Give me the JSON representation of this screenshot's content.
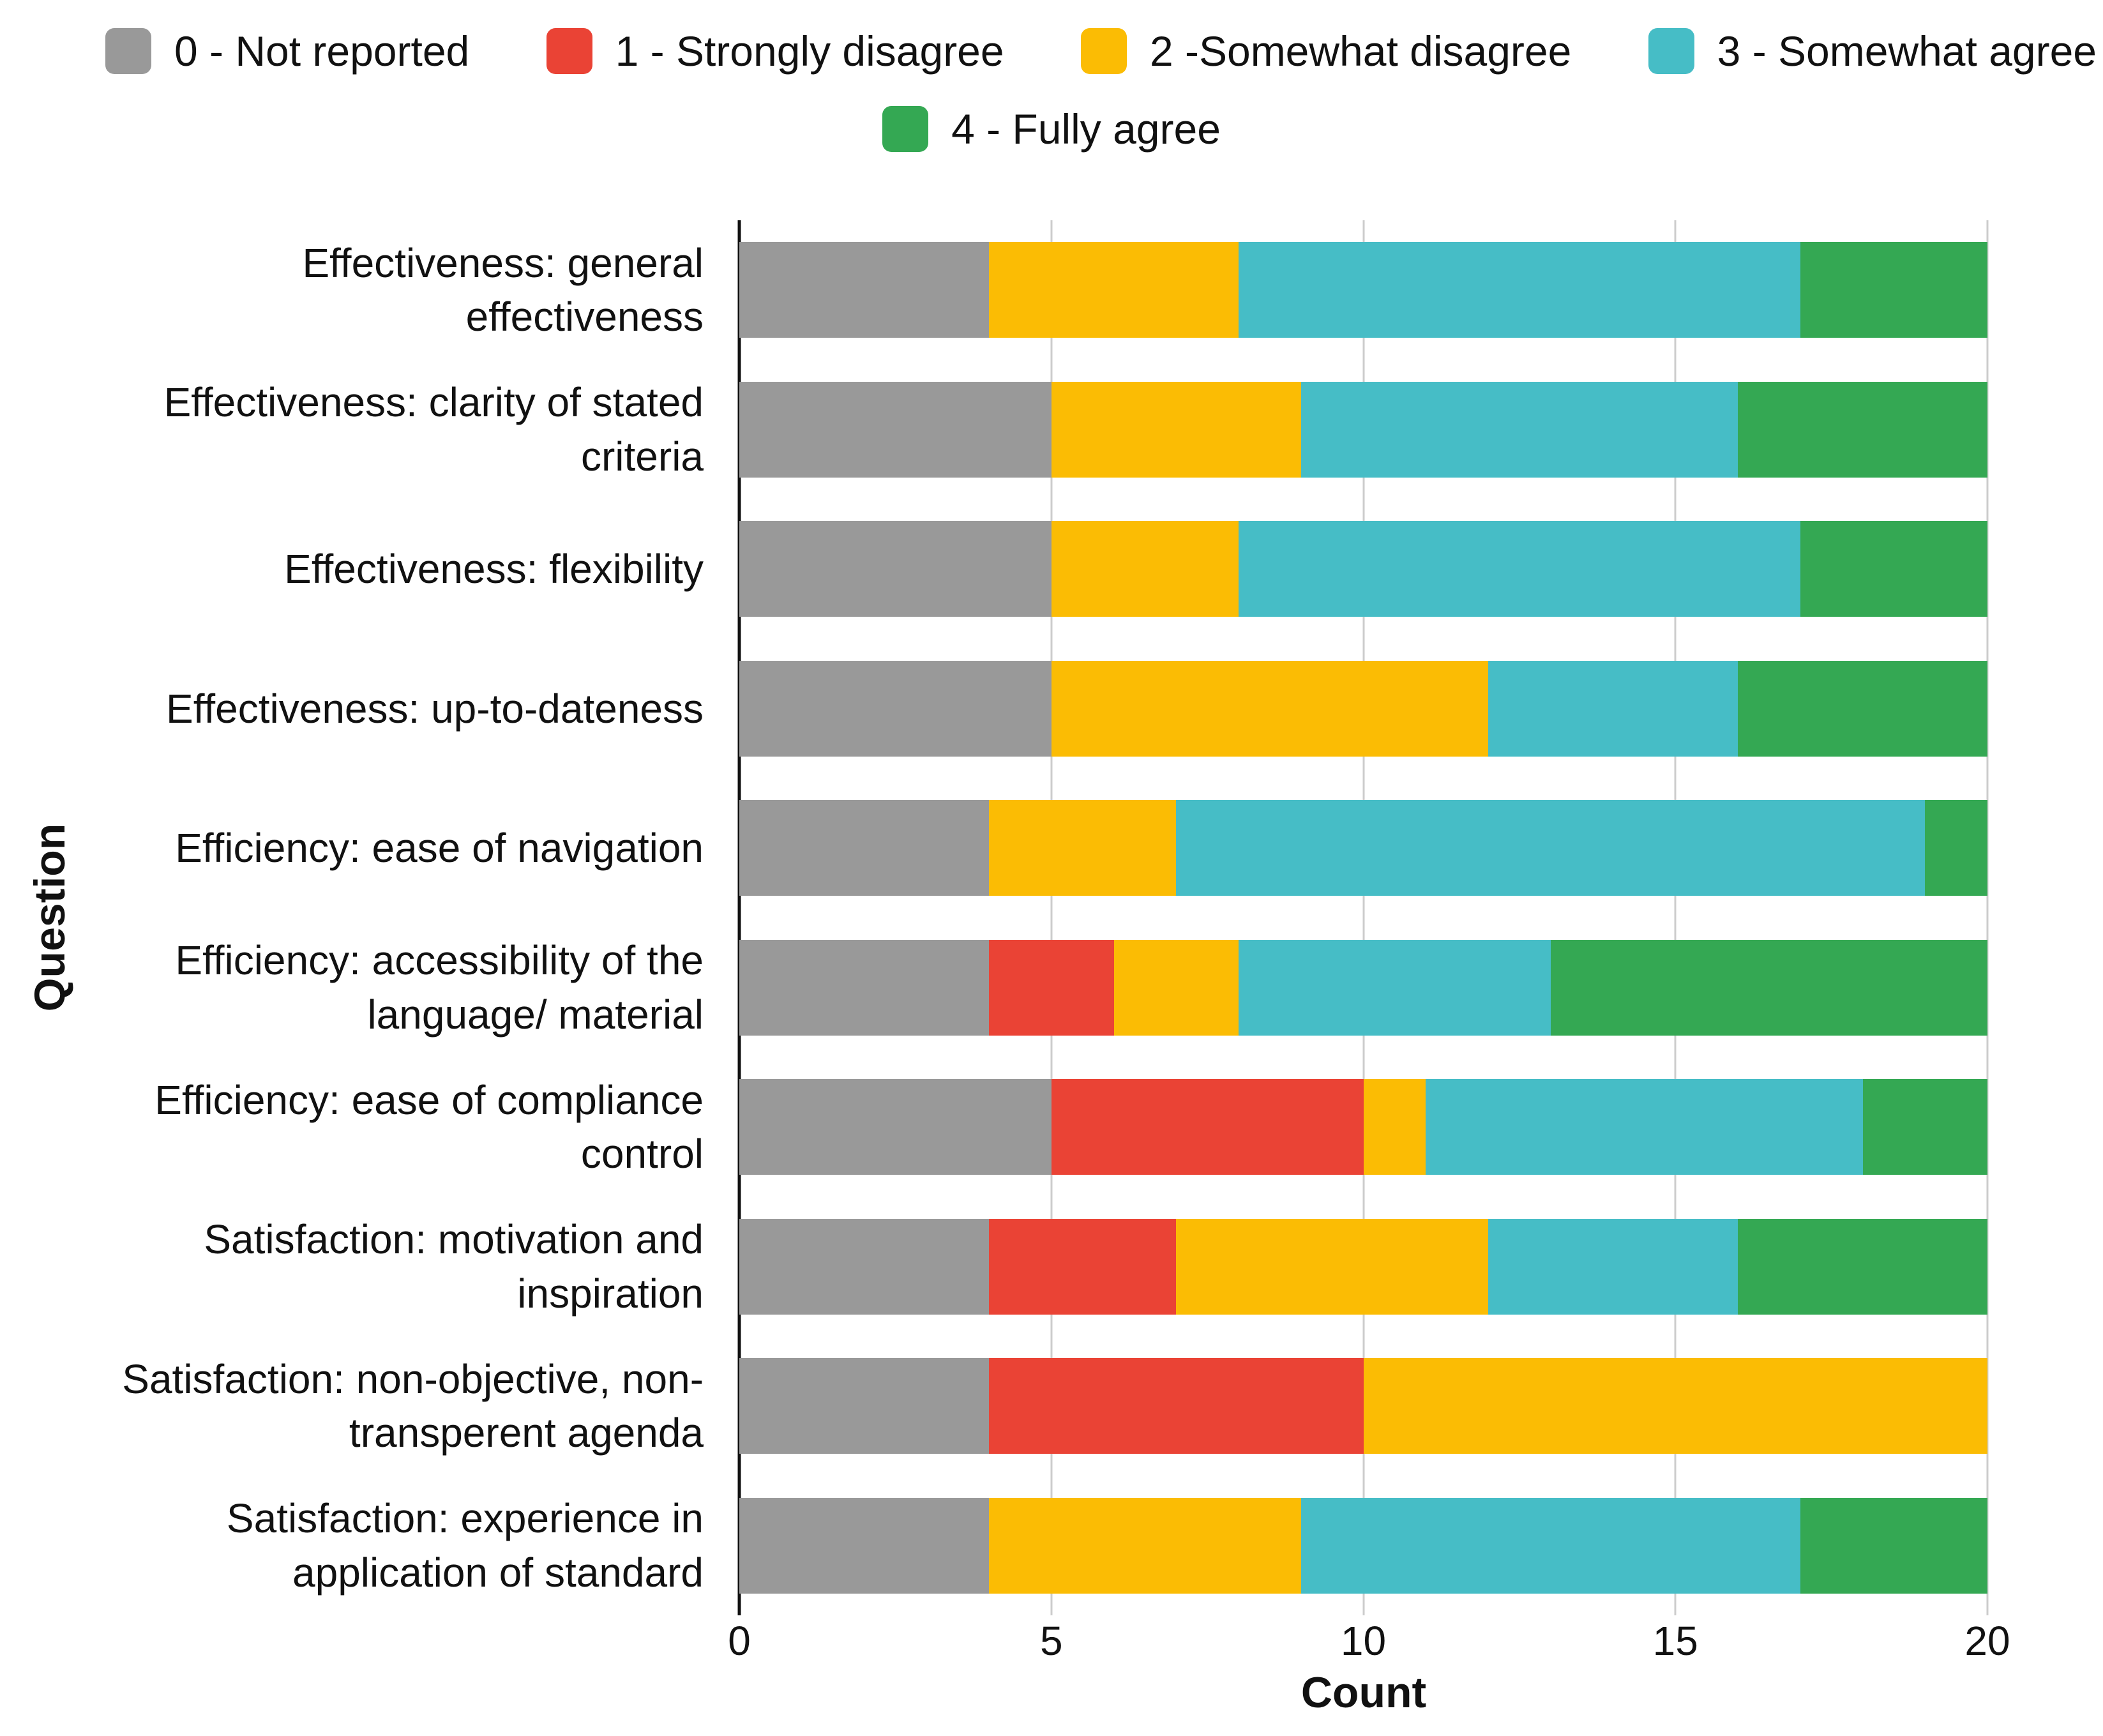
{
  "chart_data": {
    "type": "bar",
    "orientation": "horizontal",
    "stacked": true,
    "title": "",
    "xlabel": "Count",
    "ylabel": "Question",
    "xlim": [
      0,
      20
    ],
    "xticks": [
      0,
      5,
      10,
      15,
      20
    ],
    "grid": true,
    "legend_position": "top",
    "legend_row_break": 4,
    "categories": [
      "Effectiveness: general effectiveness",
      "Effectiveness: clarity of stated criteria",
      "Effectiveness: flexibility",
      "Effectiveness: up-to-dateness",
      "Efficiency: ease of navigation",
      "Efficiency: accessibility of the language/ material",
      "Efficiency: ease of compliance control",
      "Satisfaction: motivation and inspiration",
      "Satisfaction: non-objective, non-transperent agenda",
      "Satisfaction: experience in application of standard"
    ],
    "series": [
      {
        "name": "0 - Not reported",
        "color": "#999999",
        "values": [
          4,
          5,
          5,
          5,
          4,
          4,
          5,
          4,
          4,
          4
        ]
      },
      {
        "name": "1 - Strongly disagree",
        "color": "#EA4335",
        "values": [
          0,
          0,
          0,
          0,
          0,
          2,
          5,
          3,
          6,
          0
        ]
      },
      {
        "name": "2 -Somewhat disagree",
        "color": "#FBBC04",
        "values": [
          4,
          4,
          3,
          7,
          3,
          2,
          1,
          5,
          10,
          5
        ]
      },
      {
        "name": "3 - Somewhat agree",
        "color": "#46BDC6",
        "values": [
          9,
          7,
          9,
          4,
          12,
          5,
          7,
          4,
          0,
          8
        ]
      },
      {
        "name": "4 - Fully agree",
        "color": "#34A853",
        "values": [
          3,
          4,
          3,
          4,
          1,
          7,
          2,
          4,
          0,
          3
        ]
      }
    ],
    "colors": {
      "axis_line": "#111111",
      "gridline": "#cccccc",
      "text": "#111111",
      "background": "#ffffff"
    }
  }
}
